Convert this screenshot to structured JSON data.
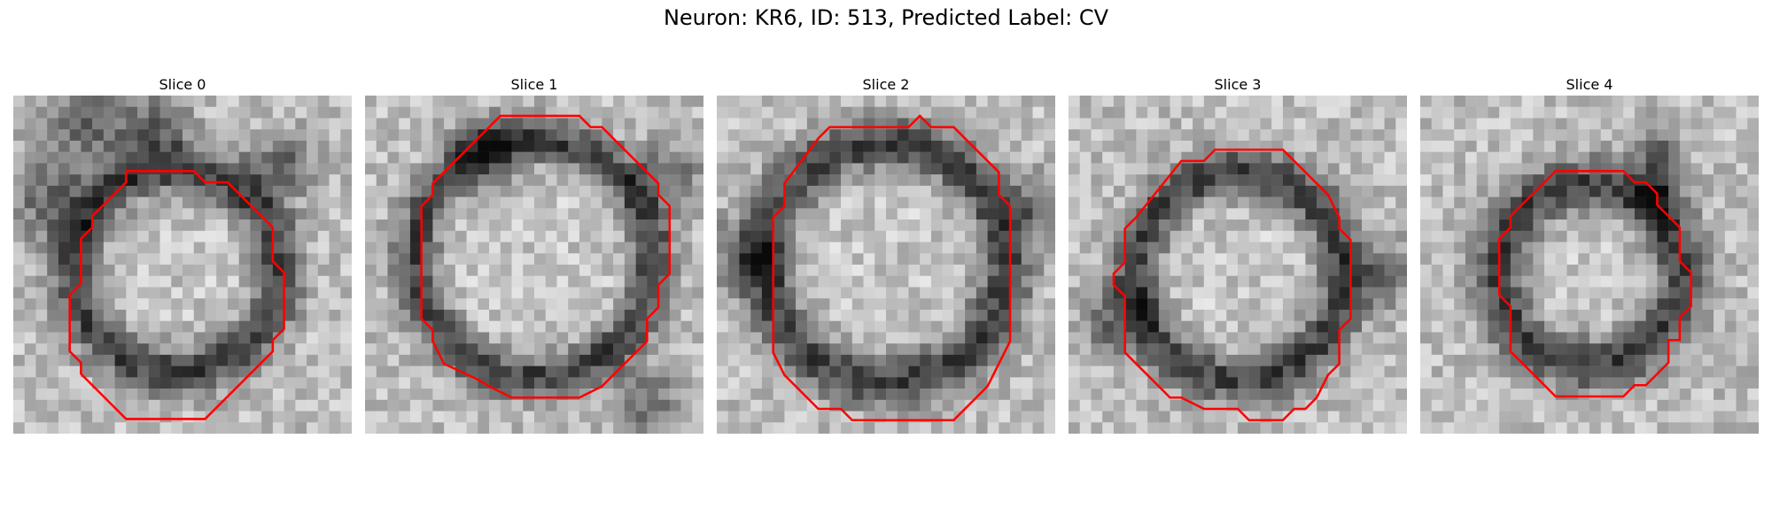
{
  "figure": {
    "title": "Neuron: KR6, ID: 513, Predicted Label: CV"
  },
  "panels": [
    {
      "title": "Slice 0"
    },
    {
      "title": "Slice 1"
    },
    {
      "title": "Slice 2"
    },
    {
      "title": "Slice 3"
    },
    {
      "title": "Slice 4"
    }
  ],
  "colors": {
    "contour": "#ff0000",
    "background": "#ffffff"
  }
}
